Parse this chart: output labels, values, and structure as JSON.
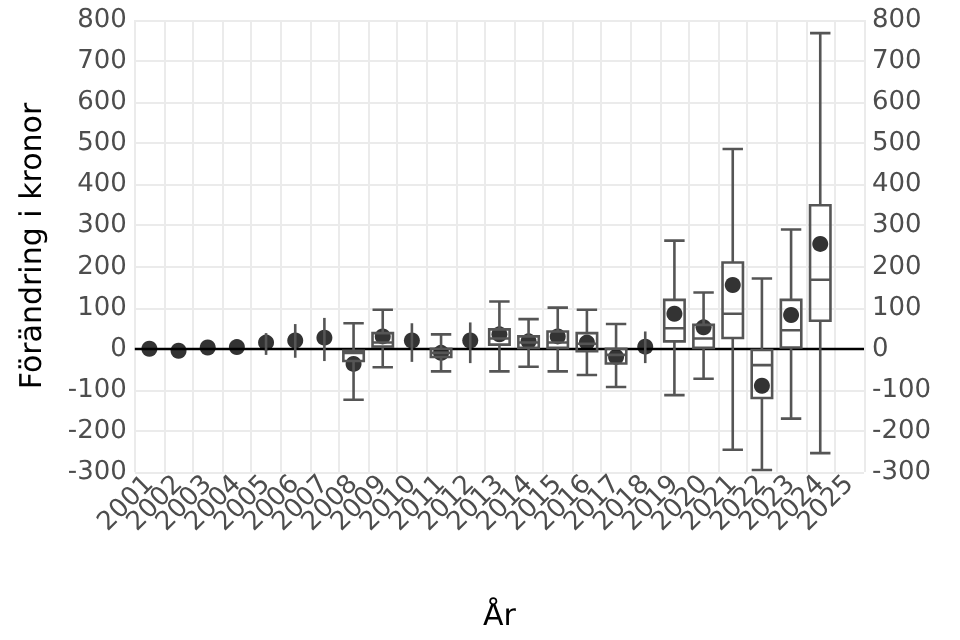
{
  "chart_data": {
    "type": "box",
    "xlabel": "År",
    "ylabel": "Förändring i kronor",
    "categories": [
      "2001",
      "2002",
      "2003",
      "2004",
      "2005",
      "2006",
      "2007",
      "2008",
      "2009",
      "2010",
      "2011",
      "2012",
      "2013",
      "2014",
      "2015",
      "2016",
      "2017",
      "2018",
      "2019",
      "2020",
      "2021",
      "2022",
      "2023",
      "2024",
      "2025"
    ],
    "color": "#555555",
    "boxes": [
      null,
      null,
      null,
      null,
      null,
      null,
      null,
      {
        "low": -124,
        "q1": -30,
        "median": -10,
        "q3": -5,
        "high": 62
      },
      {
        "low": -45,
        "q1": 5,
        "median": 15,
        "q3": 38,
        "high": 95
      },
      null,
      {
        "low": -55,
        "q1": -20,
        "median": -10,
        "q3": 0,
        "high": 35
      },
      null,
      {
        "low": -55,
        "q1": 10,
        "median": 25,
        "q3": 47,
        "high": 115
      },
      {
        "low": -44,
        "q1": 2,
        "median": 15,
        "q3": 30,
        "high": 72
      },
      {
        "low": -55,
        "q1": 2,
        "median": 15,
        "q3": 42,
        "high": 100
      },
      {
        "low": -64,
        "q1": -6,
        "median": 12,
        "q3": 38,
        "high": 95
      },
      {
        "low": -93,
        "q1": -36,
        "median": -15,
        "q3": 0,
        "high": 60
      },
      null,
      {
        "low": -113,
        "q1": 18,
        "median": 50,
        "q3": 119,
        "high": 263
      },
      {
        "low": -73,
        "q1": 2,
        "median": 25,
        "q3": 58,
        "high": 137
      },
      {
        "low": -246,
        "q1": 26,
        "median": 85,
        "q3": 210,
        "high": 486
      },
      {
        "low": -295,
        "q1": -120,
        "median": -40,
        "q3": -3,
        "high": 171
      },
      {
        "low": -170,
        "q1": 3,
        "median": 45,
        "q3": 119,
        "high": 290
      },
      {
        "low": -254,
        "q1": 68,
        "median": 168,
        "q3": 349,
        "high": 768
      },
      null
    ],
    "series": [
      {
        "type": "scatter",
        "color": "#000000",
        "marker": "circle",
        "values": [
          0,
          -5,
          3,
          4,
          15,
          20,
          27,
          -37,
          30,
          20,
          -10,
          20,
          35,
          18,
          30,
          15,
          -20,
          5,
          85,
          52,
          155,
          -90,
          82,
          255,
          null
        ],
        "errors": [
          null,
          null,
          null,
          null,
          [
            -15,
            38
          ],
          [
            -22,
            60
          ],
          [
            -30,
            75
          ],
          null,
          null,
          [
            -32,
            62
          ],
          null,
          [
            -35,
            64
          ],
          null,
          null,
          null,
          null,
          null,
          [
            -35,
            42
          ],
          null,
          null,
          null,
          null,
          null,
          null,
          null
        ]
      }
    ],
    "ylim": [
      -300,
      800
    ],
    "yticks": [
      -300,
      -200,
      -100,
      0,
      100,
      200,
      300,
      400,
      500,
      600,
      700,
      800
    ],
    "y2lim": [
      -300,
      800
    ],
    "y2ticks": [
      -300,
      -200,
      -100,
      0,
      100,
      200,
      300,
      400,
      500,
      600,
      700,
      800
    ],
    "ref_lines": [
      {
        "axis": "y",
        "value": 0,
        "color": "#000000"
      }
    ],
    "grid": true
  }
}
